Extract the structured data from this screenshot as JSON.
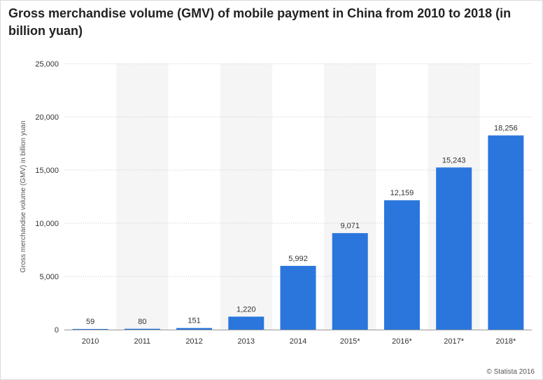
{
  "title": "Gross merchandise volume (GMV) of mobile payment in China from 2010 to 2018 (in billion yuan)",
  "credit": "© Statista 2016",
  "colors": {
    "bar": "#2a76dd",
    "band": "#f5f5f5",
    "grid": "#c8c8c8",
    "text": "#333333"
  },
  "chart_data": {
    "type": "bar",
    "title": "Gross merchandise volume (GMV) of mobile payment in China from 2010 to 2018 (in billion yuan)",
    "xlabel": "",
    "ylabel": "Gross merchandise volume (GMV) in billion yuan",
    "categories": [
      "2010",
      "2011",
      "2012",
      "2013",
      "2014",
      "2015*",
      "2016*",
      "2017*",
      "2018*"
    ],
    "values": [
      59,
      80,
      151,
      1220,
      5992,
      9071,
      12159,
      15243,
      18256
    ],
    "value_labels": [
      "59",
      "80",
      "151",
      "1,220",
      "5,992",
      "9,071",
      "12,159",
      "15,243",
      "18,256"
    ],
    "ylim": [
      0,
      25000
    ],
    "yticks": [
      0,
      5000,
      10000,
      15000,
      20000,
      25000
    ],
    "ytick_labels": [
      "0",
      "5,000",
      "10,000",
      "15,000",
      "20,000",
      "25,000"
    ],
    "grid": true,
    "legend": "none"
  }
}
